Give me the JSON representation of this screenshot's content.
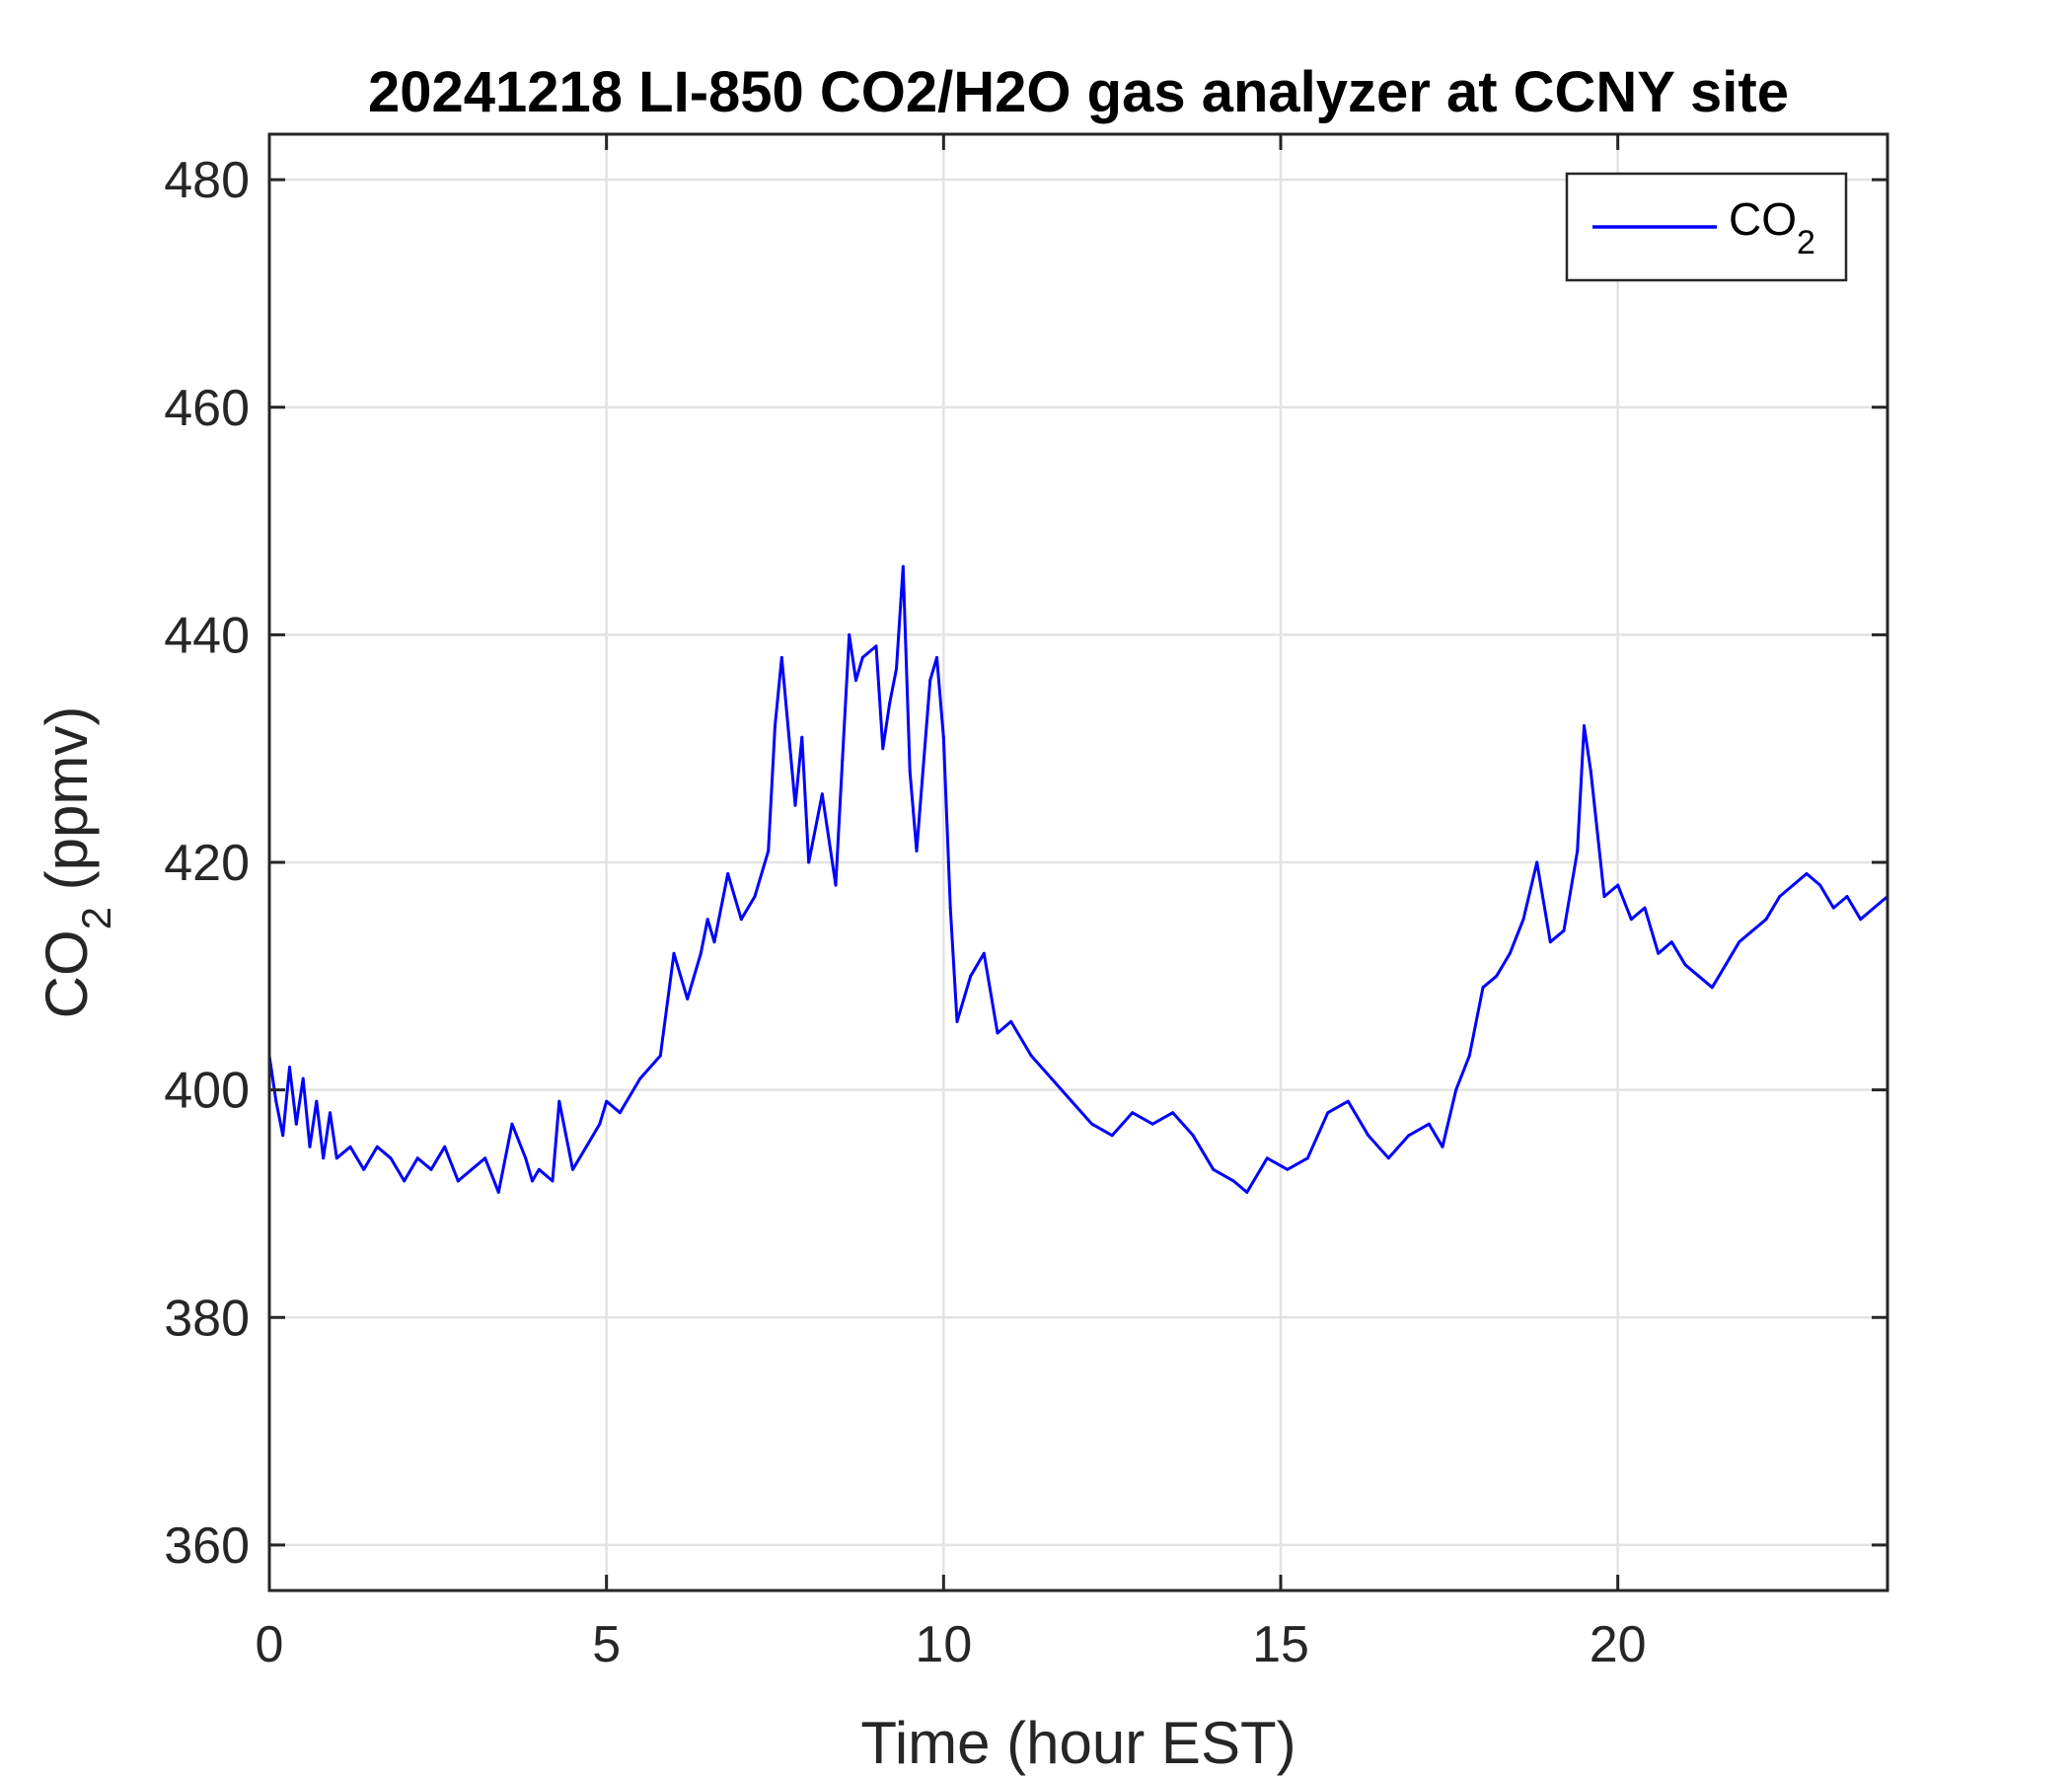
{
  "chart_data": {
    "type": "line",
    "title": "20241218 LI-850 CO2/H2O gas analyzer at CCNY site",
    "xlabel": "Time (hour EST)",
    "ylabel": {
      "base": "CO",
      "sub": "2",
      "rest": " (ppmv)"
    },
    "xlim": [
      0,
      24
    ],
    "ylim": [
      356,
      484
    ],
    "xticks": [
      0,
      5,
      10,
      15,
      20
    ],
    "yticks": [
      360,
      380,
      400,
      420,
      440,
      460,
      480
    ],
    "grid": true,
    "legend_position": "top-right",
    "series": [
      {
        "name": {
          "base": "CO",
          "sub": "2"
        },
        "color": "#0000ff",
        "x": [
          0,
          0.1,
          0.2,
          0.3,
          0.4,
          0.5,
          0.6,
          0.7,
          0.8,
          0.9,
          1.0,
          1.2,
          1.4,
          1.6,
          1.8,
          2.0,
          2.2,
          2.4,
          2.6,
          2.8,
          3.0,
          3.2,
          3.4,
          3.6,
          3.8,
          3.9,
          4.0,
          4.2,
          4.3,
          4.5,
          4.7,
          4.9,
          5.0,
          5.2,
          5.5,
          5.8,
          6.0,
          6.2,
          6.4,
          6.5,
          6.6,
          6.8,
          7.0,
          7.2,
          7.4,
          7.5,
          7.6,
          7.8,
          7.9,
          8.0,
          8.2,
          8.4,
          8.5,
          8.6,
          8.7,
          8.8,
          9.0,
          9.1,
          9.2,
          9.3,
          9.4,
          9.5,
          9.6,
          9.8,
          9.9,
          10.0,
          10.1,
          10.2,
          10.4,
          10.6,
          10.8,
          11.0,
          11.3,
          11.6,
          11.9,
          12.2,
          12.5,
          12.8,
          13.1,
          13.4,
          13.7,
          14.0,
          14.3,
          14.5,
          14.8,
          15.1,
          15.4,
          15.7,
          16.0,
          16.3,
          16.6,
          16.9,
          17.2,
          17.4,
          17.6,
          17.8,
          18.0,
          18.2,
          18.4,
          18.6,
          18.8,
          19.0,
          19.2,
          19.4,
          19.5,
          19.6,
          19.8,
          20.0,
          20.2,
          20.4,
          20.6,
          20.8,
          21.0,
          21.2,
          21.4,
          21.6,
          21.8,
          22.0,
          22.2,
          22.4,
          22.6,
          22.8,
          23.0,
          23.2,
          23.4,
          23.6,
          23.8,
          24.0
        ],
        "values": [
          403,
          399,
          396,
          402,
          397,
          401,
          395,
          399,
          394,
          398,
          394,
          395,
          393,
          395,
          394,
          392,
          394,
          393,
          395,
          392,
          393,
          394,
          391,
          397,
          394,
          392,
          393,
          392,
          399,
          393,
          395,
          397,
          399,
          398,
          401,
          403,
          412,
          408,
          412,
          415,
          413,
          419,
          415,
          417,
          421,
          432,
          438,
          425,
          431,
          420,
          426,
          418,
          429,
          440,
          436,
          438,
          439,
          430,
          434,
          437,
          446,
          428,
          421,
          436,
          438,
          431,
          416,
          406,
          410,
          412,
          405,
          406,
          403,
          401,
          399,
          397,
          396,
          398,
          397,
          398,
          396,
          393,
          392,
          391,
          394,
          393,
          394,
          398,
          399,
          396,
          394,
          396,
          397,
          395,
          400,
          403,
          409,
          410,
          412,
          415,
          420,
          413,
          414,
          421,
          432,
          428,
          417,
          418,
          415,
          416,
          412,
          413,
          411,
          410,
          409,
          411,
          413,
          414,
          415,
          417,
          418,
          419,
          418,
          416,
          417,
          415,
          416,
          417
        ]
      }
    ]
  }
}
